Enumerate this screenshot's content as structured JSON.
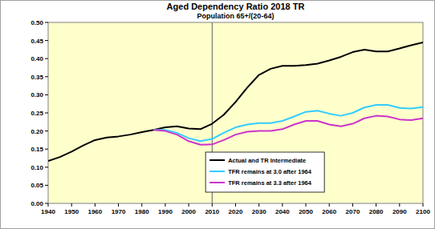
{
  "chart_data": {
    "type": "line",
    "title": "Aged Dependency Ratio 2018 TR",
    "subtitle": "Population 65+/(20-64)",
    "x": [
      1940,
      1945,
      1950,
      1955,
      1960,
      1965,
      1970,
      1975,
      1980,
      1985,
      1990,
      1995,
      2000,
      2005,
      2010,
      2015,
      2020,
      2025,
      2030,
      2035,
      2040,
      2045,
      2050,
      2055,
      2060,
      2065,
      2070,
      2075,
      2080,
      2085,
      2090,
      2095,
      2100
    ],
    "series": [
      {
        "name": "Actual and TR Intermediate",
        "color": "#000000",
        "values": [
          0.117,
          0.128,
          0.143,
          0.16,
          0.175,
          0.182,
          0.185,
          0.19,
          0.197,
          0.203,
          0.21,
          0.213,
          0.207,
          0.205,
          0.22,
          0.245,
          0.28,
          0.32,
          0.355,
          0.372,
          0.38,
          0.38,
          0.382,
          0.386,
          0.395,
          0.405,
          0.418,
          0.425,
          0.42,
          0.42,
          0.428,
          0.437,
          0.445
        ]
      },
      {
        "name": "TFR remains at 3.0 after 1964",
        "color": "#33ccff",
        "values": [
          null,
          null,
          null,
          null,
          null,
          null,
          null,
          null,
          null,
          0.203,
          0.203,
          0.195,
          0.18,
          0.172,
          0.178,
          0.195,
          0.21,
          0.218,
          0.222,
          0.222,
          0.228,
          0.24,
          0.253,
          0.256,
          0.248,
          0.242,
          0.25,
          0.265,
          0.272,
          0.272,
          0.264,
          0.262,
          0.266
        ]
      },
      {
        "name": "TFR remains at 3.3 after 1964",
        "color": "#cc33cc",
        "values": [
          null,
          null,
          null,
          null,
          null,
          null,
          null,
          null,
          null,
          0.203,
          0.2,
          0.19,
          0.172,
          0.162,
          0.163,
          0.175,
          0.19,
          0.198,
          0.2,
          0.2,
          0.205,
          0.218,
          0.228,
          0.228,
          0.218,
          0.213,
          0.22,
          0.235,
          0.242,
          0.24,
          0.232,
          0.23,
          0.235
        ]
      }
    ],
    "x_marker": 2010,
    "xlim": [
      1940,
      2100
    ],
    "xticks": [
      1940,
      1950,
      1960,
      1970,
      1980,
      1990,
      2000,
      2010,
      2020,
      2030,
      2040,
      2050,
      2060,
      2070,
      2080,
      2090,
      2100
    ],
    "ylim": [
      0,
      0.5
    ],
    "yticks": [
      {
        "value": 0,
        "label": "0.00"
      },
      {
        "value": 0.05,
        "label": "0.05"
      },
      {
        "value": 0.1,
        "label": "0.10"
      },
      {
        "value": 0.15,
        "label": "0.15"
      },
      {
        "value": 0.2,
        "label": "0.20"
      },
      {
        "value": 0.25,
        "label": "0.25"
      },
      {
        "value": 0.3,
        "label": "0.30"
      },
      {
        "value": 0.35,
        "label": "0.35"
      },
      {
        "value": 0.4,
        "label": "0.40"
      },
      {
        "value": 0.45,
        "label": "0.45"
      },
      {
        "value": 0.5,
        "label": "0.50"
      }
    ],
    "grid": false,
    "legend": "bottom"
  }
}
